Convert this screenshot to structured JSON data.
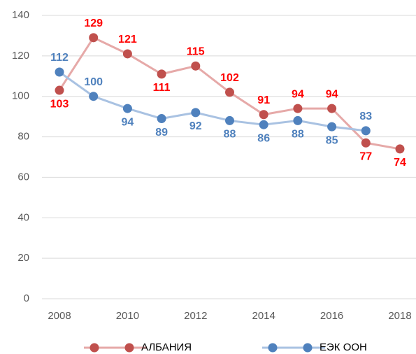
{
  "chart_data": {
    "type": "line",
    "x": [
      2008,
      2009,
      2010,
      2011,
      2012,
      2013,
      2014,
      2015,
      2016,
      2017,
      2018
    ],
    "series": [
      {
        "name": "АЛБАНИЯ",
        "color": "#c0504d",
        "line_color": "#e6a9a8",
        "label_color": "#ff0000",
        "values": [
          103,
          129,
          121,
          111,
          115,
          102,
          91,
          94,
          94,
          77,
          74
        ]
      },
      {
        "name": "ЕЭК ООН",
        "color": "#4f81bd",
        "line_color": "#a9c2e2",
        "label_color": "#4f81bd",
        "values": [
          112,
          100,
          94,
          89,
          92,
          88,
          86,
          88,
          85,
          83,
          null
        ]
      }
    ],
    "xlim": [
      2008,
      2018
    ],
    "xticks": [
      2008,
      2010,
      2012,
      2014,
      2016,
      2018
    ],
    "ylim": [
      0,
      140
    ],
    "yticks": [
      0,
      20,
      40,
      60,
      80,
      100,
      120,
      140
    ],
    "grid": true,
    "legend": "bottom"
  }
}
